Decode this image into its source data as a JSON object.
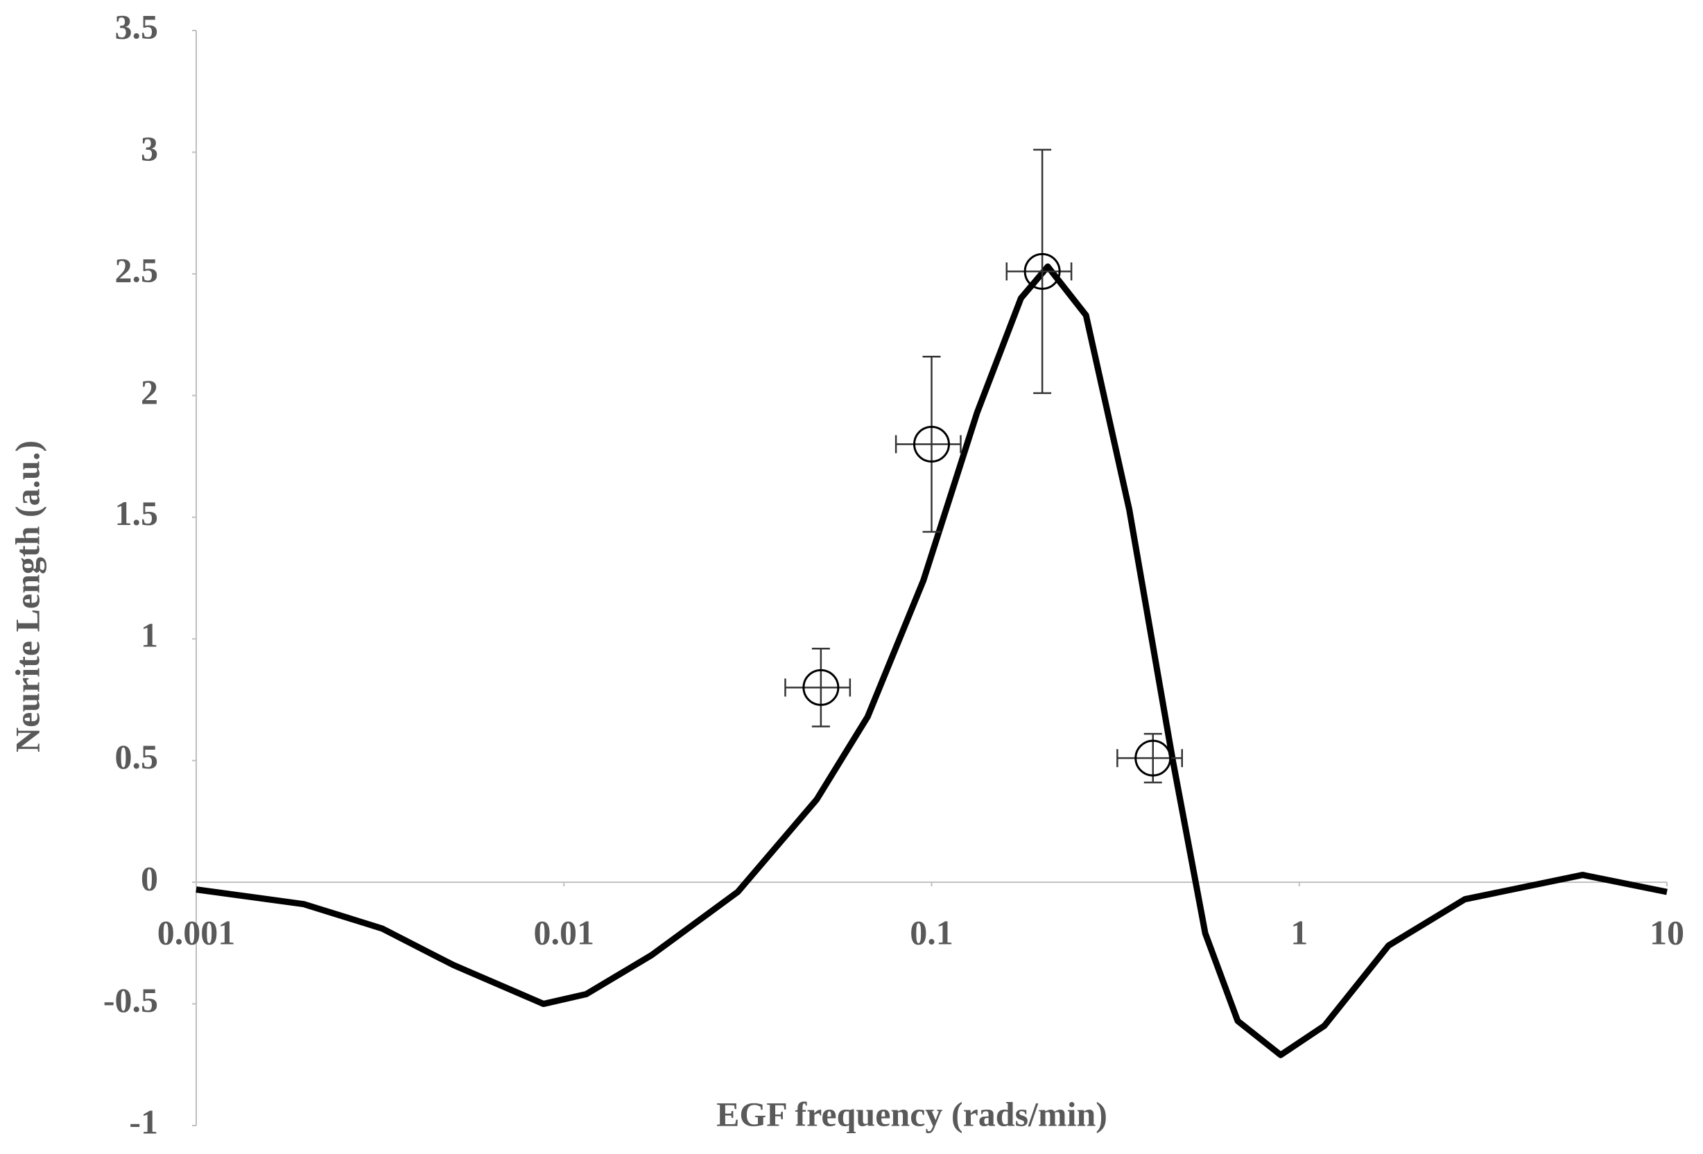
{
  "chart_data": {
    "type": "line-scatter",
    "x_label": "EGF frequency (rads/min)",
    "y_label": "Neurite Length (a.u.)",
    "xscale": "log",
    "xlim": [
      0.001,
      10
    ],
    "xticks": [
      0.001,
      0.01,
      0.1,
      1,
      10
    ],
    "ylim": [
      -1,
      3.5
    ],
    "yticks": [
      -1,
      -0.5,
      0,
      0.5,
      1,
      1.5,
      2,
      2.5,
      3,
      3.5
    ],
    "series": [
      {
        "type": "line",
        "color": "#000000",
        "x": [
          0.001,
          0.00196,
          0.0032,
          0.005,
          0.0088,
          0.0115,
          0.0173,
          0.0297,
          0.0487,
          0.067,
          0.095,
          0.133,
          0.175,
          0.207,
          0.263,
          0.345,
          0.453,
          0.555,
          0.68,
          0.89,
          1.17,
          1.75,
          2.82,
          5.9,
          10
        ],
        "values": [
          -0.03,
          -0.09,
          -0.19,
          -0.34,
          -0.5,
          -0.46,
          -0.3,
          -0.04,
          0.34,
          0.68,
          1.24,
          1.93,
          2.4,
          2.53,
          2.33,
          1.53,
          0.5,
          -0.21,
          -0.57,
          -0.71,
          -0.59,
          -0.26,
          -0.07,
          0.03,
          -0.04
        ]
      },
      {
        "type": "scatter",
        "color": "#000000",
        "x": [
          0.05,
          0.1,
          0.2,
          0.4
        ],
        "values": [
          0.8,
          1.8,
          2.51,
          0.51
        ],
        "xerr": [
          0.01,
          0.02,
          0.04,
          0.08
        ],
        "yerr": [
          0.16,
          0.36,
          0.5,
          0.1
        ]
      }
    ]
  }
}
